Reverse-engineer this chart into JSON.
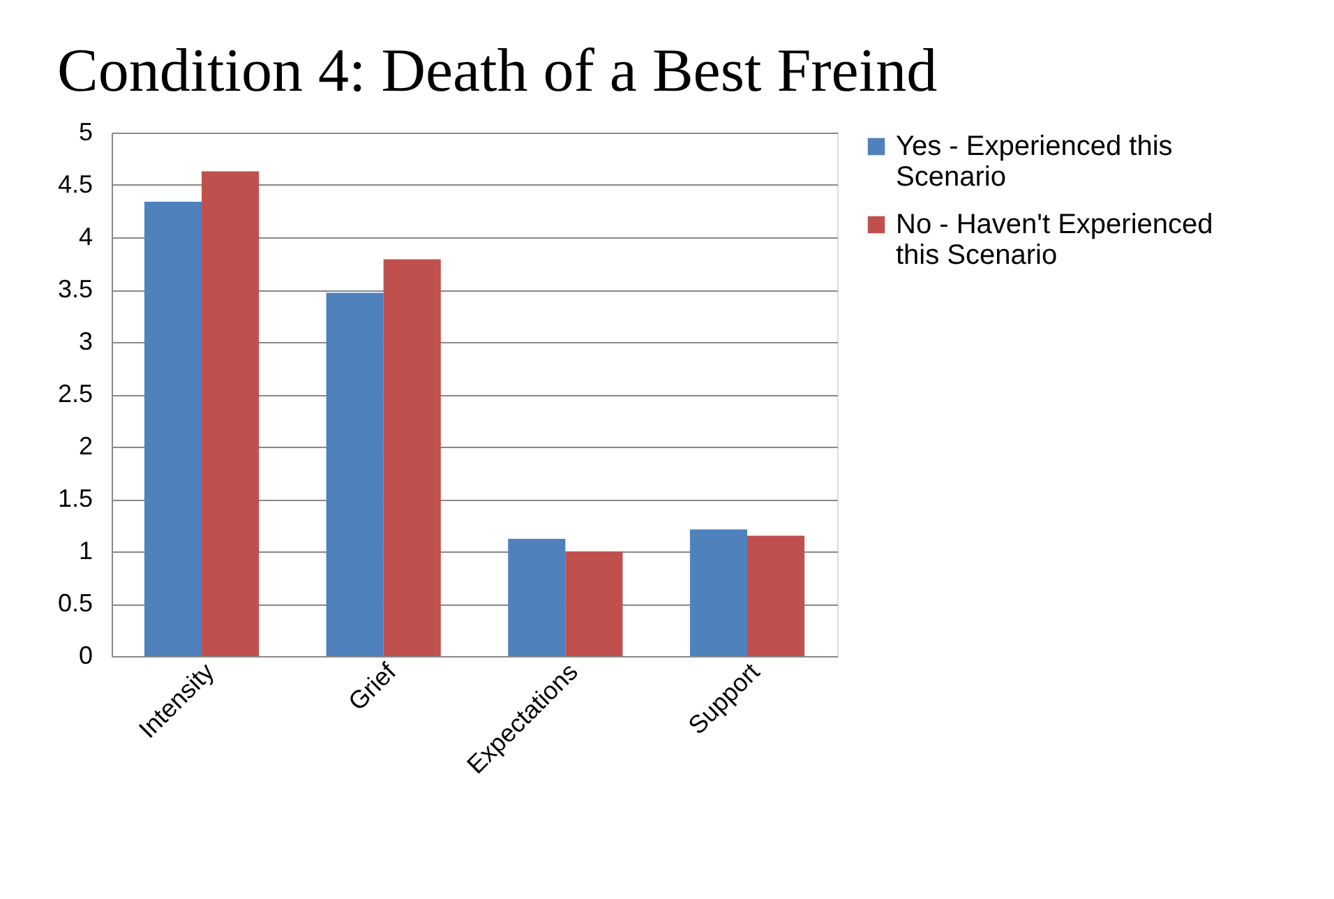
{
  "chart_data": {
    "type": "bar",
    "title": "Condition 4: Death of a Best Freind",
    "categories": [
      "Intensity",
      "Grief",
      "Expectations",
      "Support"
    ],
    "series": [
      {
        "name": "Yes - Experienced this Scenario",
        "color": "#4f81bd",
        "values": [
          4.34,
          3.47,
          1.12,
          1.21
        ]
      },
      {
        "name": "No - Haven't Experienced this Scenario",
        "color": "#c0504d",
        "values": [
          4.63,
          3.79,
          1.0,
          1.15
        ]
      }
    ],
    "ylim": [
      0,
      5
    ],
    "yticks": [
      0,
      0.5,
      1,
      1.5,
      2,
      2.5,
      3,
      3.5,
      4,
      4.5,
      5
    ],
    "grid": "y",
    "legend": "right"
  }
}
